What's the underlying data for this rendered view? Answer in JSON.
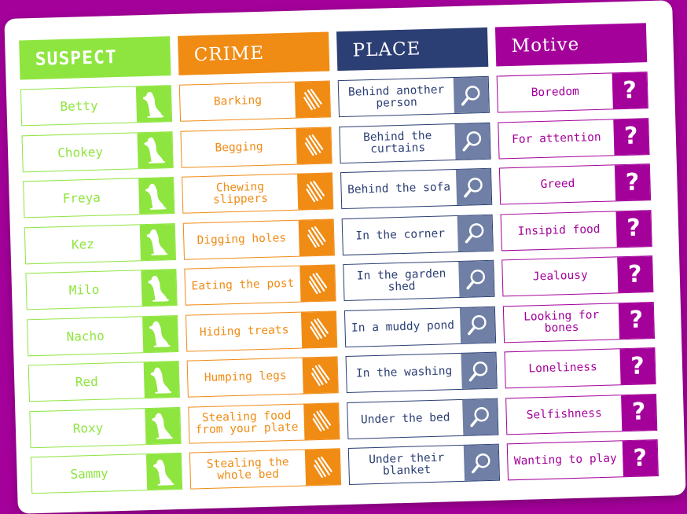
{
  "columns": [
    {
      "title": "SUSPECT",
      "icon": "dog-icon",
      "items": [
        "Betty",
        "Chokey",
        "Freya",
        "Kez",
        "Milo",
        "Nacho",
        "Red",
        "Roxy",
        "Sammy"
      ]
    },
    {
      "title": "CRIME",
      "icon": "claw-scratch-icon",
      "items": [
        "Barking",
        "Begging",
        "Chewing slippers",
        "Digging holes",
        "Eating the post",
        "Hiding treats",
        "Humping legs",
        "Stealing food from your plate",
        "Stealing the whole bed"
      ]
    },
    {
      "title": "PLACE",
      "icon": "magnifying-glass-icon",
      "items": [
        "Behind another person",
        "Behind the curtains",
        "Behind the sofa",
        "In the corner",
        "In the garden shed",
        "In a muddy pond",
        "In the washing",
        "Under the bed",
        "Under their blanket"
      ]
    },
    {
      "title": "Motive",
      "icon": "question-mark-icon",
      "items": [
        "Boredom",
        "For attention",
        "Greed",
        "Insipid food",
        "Jealousy",
        "Looking for bones",
        "Loneliness",
        "Selfishness",
        "Wanting to play"
      ]
    }
  ],
  "colors": {
    "suspect": "#8ee53f",
    "crime": "#f08b14",
    "place": "#2c3f74",
    "place_badge": "#6f7fa5",
    "motive": "#a4009a",
    "background": "#a4009a"
  },
  "question_glyph": "?"
}
